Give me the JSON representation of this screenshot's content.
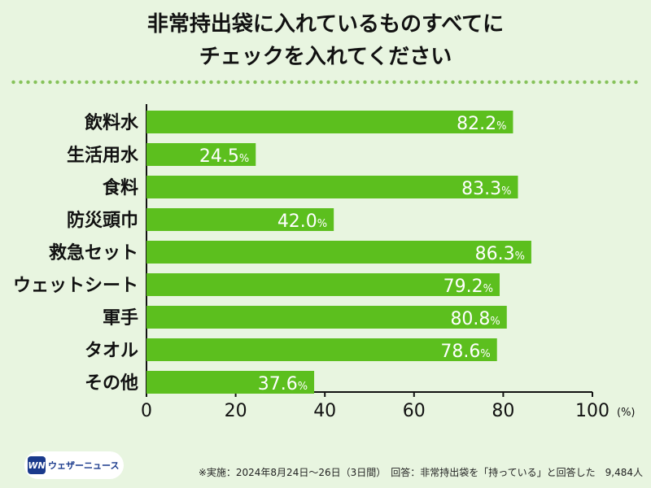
{
  "title_line1": "非常持出袋に入れているものすべてに",
  "title_line2": "チェックを入れてください",
  "chart_data": {
    "type": "bar",
    "orientation": "horizontal",
    "categories": [
      "飲料水",
      "生活用水",
      "食料",
      "防災頭巾",
      "救急セット",
      "ウェットシート",
      "軍手",
      "タオル",
      "その他"
    ],
    "values": [
      82.2,
      24.5,
      83.3,
      42.0,
      86.3,
      79.2,
      80.8,
      78.6,
      37.6
    ],
    "value_labels": [
      "82.2",
      "24.5",
      "83.3",
      "42.0",
      "86.3",
      "79.2",
      "80.8",
      "78.6",
      "37.6"
    ],
    "value_suffix": "%",
    "xlim": [
      0,
      100
    ],
    "xticks": [
      0,
      20,
      40,
      60,
      80,
      100
    ],
    "xunit": "(%)",
    "bar_color": "#5cbf1e",
    "grid": false
  },
  "logo": {
    "mark": "WN",
    "text": "ウェザーニュース"
  },
  "footnote": "※実施：2024年8月24日〜26日（3日間）　回答：非常持出袋を「持っている」と回答した　9,484人"
}
